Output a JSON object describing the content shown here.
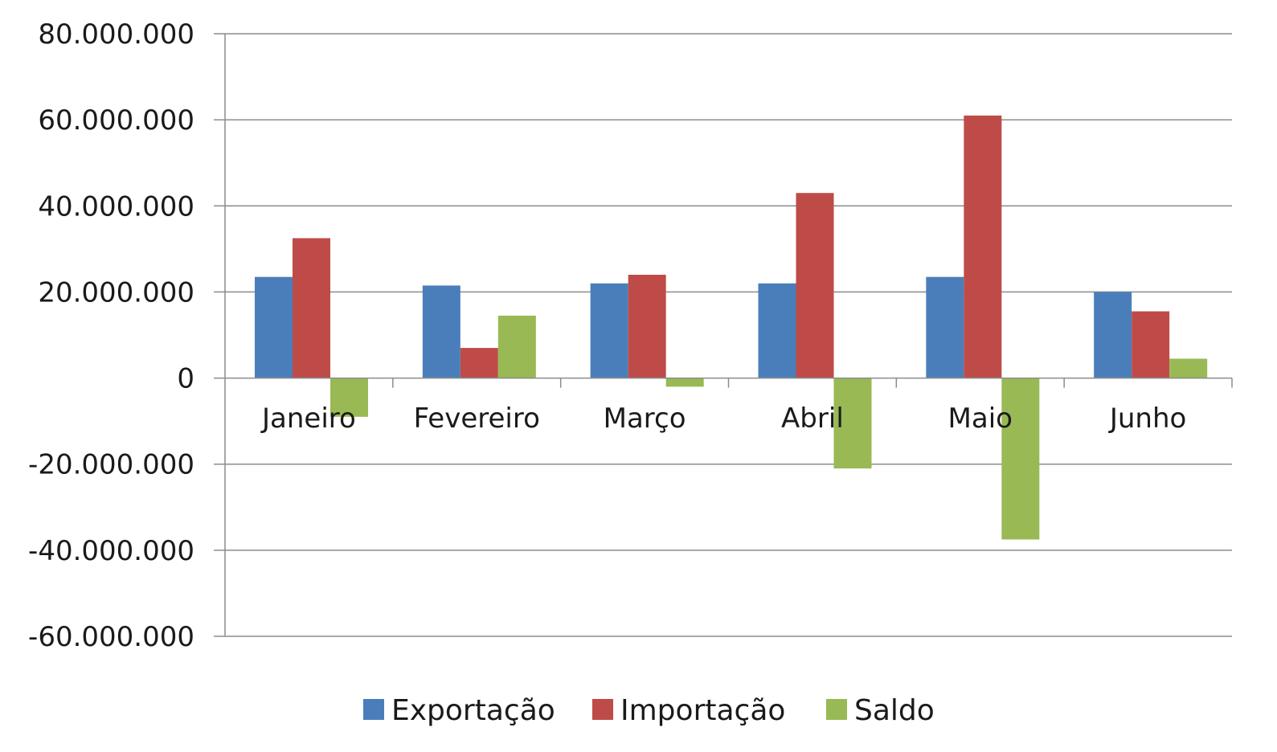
{
  "chart_data": {
    "type": "bar",
    "categories": [
      "Janeiro",
      "Fevereiro",
      "Março",
      "Abril",
      "Maio",
      "Junho"
    ],
    "series": [
      {
        "name": "Exportação",
        "color": "#4a7ebb",
        "values": [
          23500000,
          21500000,
          22000000,
          22000000,
          23500000,
          20000000
        ]
      },
      {
        "name": "Importação",
        "color": "#be4b48",
        "values": [
          32500000,
          7000000,
          24000000,
          43000000,
          61000000,
          15500000
        ]
      },
      {
        "name": "Saldo",
        "color": "#98b954",
        "values": [
          -9000000,
          14500000,
          -2000000,
          -21000000,
          -37500000,
          4500000
        ]
      }
    ],
    "ylim": [
      -60000000,
      80000000
    ],
    "yticks": [
      80000000,
      60000000,
      40000000,
      20000000,
      0,
      -20000000,
      -40000000,
      -60000000
    ],
    "ytick_labels": [
      "80.000.000",
      "60.000.000",
      "40.000.000",
      "20.000.000",
      "0",
      "-20.000.000",
      "-40.000.000",
      "-60.000.000"
    ],
    "grid": true,
    "legend_position": "bottom"
  }
}
